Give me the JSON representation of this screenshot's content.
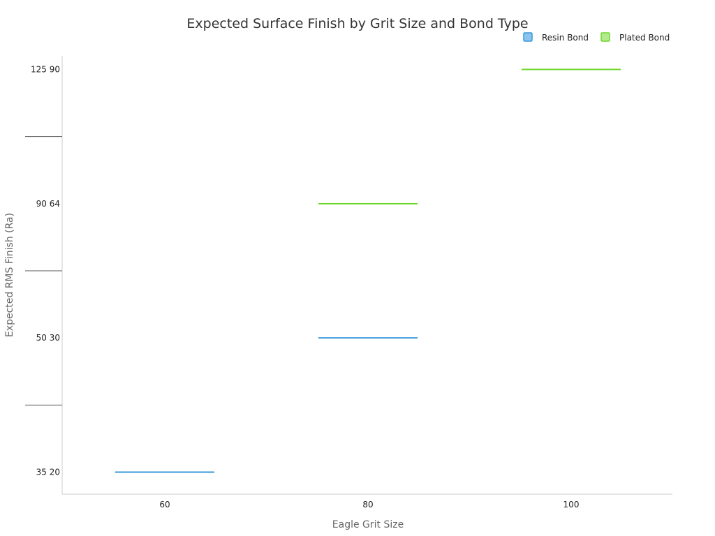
{
  "chart_data": {
    "type": "line",
    "title": "Expected Surface Finish by Grit Size and Bond Type",
    "xlabel": "Eagle Grit Size",
    "ylabel": "Expected RMS Finish (Ra)",
    "categories": [
      "60",
      "80",
      "100"
    ],
    "y_tick_labels": [
      "35  20",
      "50  30",
      "90  64",
      "125  90"
    ],
    "series": [
      {
        "name": "Resin Bond",
        "color": "#3a9ad9",
        "fill": "#8cc4ee",
        "points": [
          {
            "x": "60",
            "y_level": "35  20"
          },
          {
            "x": "80",
            "y_level": "50  30"
          }
        ]
      },
      {
        "name": "Plated Bond",
        "color": "#6ed62b",
        "fill": "#b4ea8e",
        "points": [
          {
            "x": "80",
            "y_level": "90  64"
          },
          {
            "x": "100",
            "y_level": "125  90"
          }
        ]
      }
    ],
    "grid": false,
    "legend_position": "top-right"
  }
}
